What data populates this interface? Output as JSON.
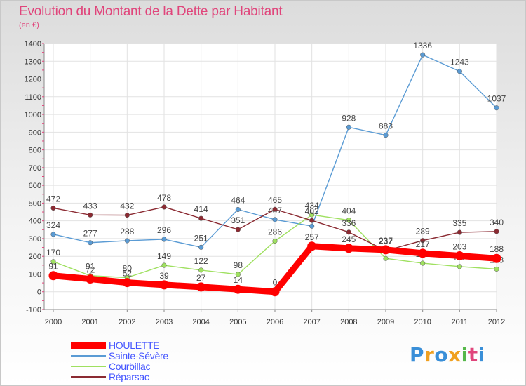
{
  "header": {
    "title": "Evolution du Montant de la Dette par Habitant",
    "unit": "(en €)"
  },
  "logo": {
    "letters": [
      "P",
      "r",
      "o",
      "x",
      "i",
      "t",
      "i"
    ],
    "colors": [
      "#3a8fd8",
      "#f0a020",
      "#3a8fd8",
      "#f0a020",
      "#56b84a",
      "#e0457b",
      "#3a8fd8"
    ]
  },
  "chart_data": {
    "type": "line",
    "title": "Evolution du Montant de la Dette par Habitant",
    "subtitle": "(en €)",
    "xlabel": "",
    "ylabel": "",
    "x": [
      "2000",
      "2001",
      "2002",
      "2003",
      "2004",
      "2005",
      "2006",
      "2007",
      "2008",
      "2009",
      "2010",
      "2011",
      "2012"
    ],
    "ylim": [
      -100,
      1400
    ],
    "yticks": [
      "-100",
      "0",
      "100",
      "200",
      "300",
      "400",
      "500",
      "600",
      "700",
      "800",
      "900",
      "1000",
      "1100",
      "1200",
      "1300",
      "1400"
    ],
    "grid": true,
    "legend_position": "bottom-left",
    "series": [
      {
        "name": "Sainte-Sévère",
        "color": "#5a9bd4",
        "values": [
          324,
          277,
          288,
          296,
          251,
          464,
          407,
          370,
          928,
          883,
          1336,
          1243,
          1037
        ],
        "labels": [
          "324",
          "277",
          "288",
          "296",
          "251",
          "464",
          "407",
          "",
          "928",
          "883",
          "1336",
          "1243",
          "1037"
        ]
      },
      {
        "name": "Courbillac",
        "color": "#9fe060",
        "values": [
          170,
          91,
          80,
          149,
          122,
          98,
          286,
          434,
          404,
          188,
          161,
          142,
          128
        ],
        "labels": [
          "170",
          "91",
          "80",
          "149",
          "122",
          "98",
          "286",
          "434",
          "404",
          "",
          "161",
          "142",
          "128"
        ]
      },
      {
        "name": "Réparsac",
        "color": "#8b2a32",
        "values": [
          472,
          433,
          432,
          478,
          414,
          351,
          465,
          402,
          336,
          232,
          289,
          335,
          340
        ],
        "labels": [
          "472",
          "433",
          "432",
          "478",
          "414",
          "351",
          "465",
          "402",
          "336",
          "232",
          "289",
          "335",
          "340"
        ]
      },
      {
        "name": "HOULETTE",
        "color": "#ff0000",
        "values": [
          91,
          72,
          52,
          39,
          27,
          14,
          0,
          257,
          245,
          237,
          217,
          203,
          188
        ],
        "labels": [
          "91",
          "72",
          "52",
          "39",
          "27",
          "14",
          "0",
          "257",
          "245",
          "237",
          "217",
          "203",
          "188"
        ]
      }
    ]
  }
}
